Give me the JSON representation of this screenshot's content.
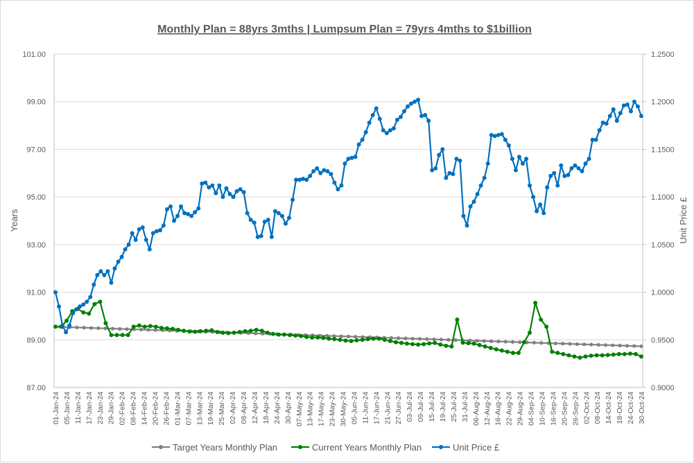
{
  "chart_data": {
    "type": "line",
    "title": "Monthly Plan = 88yrs 3mths | Lumpsum Plan = 79yrs 4mths to $1billion",
    "xlabel": "",
    "ylabel": "Years",
    "y2label": "Unit Price £",
    "ylim": [
      87,
      101
    ],
    "y2lim": [
      0.9,
      1.25
    ],
    "yticks": [
      "87.00",
      "89.00",
      "91.00",
      "93.00",
      "95.00",
      "97.00",
      "99.00",
      "101.00"
    ],
    "y2ticks": [
      "0.9000",
      "0.9500",
      "1.0000",
      "1.0500",
      "1.1000",
      "1.1500",
      "1.2000",
      "1.2500"
    ],
    "grid": true,
    "legend_position": "bottom",
    "x_tick_labels": [
      "01-Jan-24",
      "05-Jan-24",
      "11-Jan-24",
      "17-Jan-24",
      "23-Jan-24",
      "29-Jan-24",
      "02-Feb-24",
      "08-Feb-24",
      "14-Feb-24",
      "20-Feb-24",
      "26-Feb-24",
      "01-Mar-24",
      "07-Mar-24",
      "13-Mar-24",
      "19-Mar-24",
      "25-Mar-24",
      "02-Apr-24",
      "08-Apr-24",
      "12-Apr-24",
      "18-Apr-24",
      "24-Apr-24",
      "30-Apr-24",
      "07-May-24",
      "13-May-24",
      "17-May-24",
      "23-May-24",
      "30-May-24",
      "05-Jun-24",
      "11-Jun-24",
      "17-Jun-24",
      "21-Jun-24",
      "27-Jun-24",
      "03-Jul-24",
      "09-Jul-24",
      "15-Jul-24",
      "19-Jul-24",
      "25-Jul-24",
      "31-Jul-24",
      "06-Aug-24",
      "12-Aug-24",
      "16-Aug-24",
      "22-Aug-24",
      "29-Aug-24",
      "04-Sep-24",
      "10-Sep-24",
      "16-Sep-24",
      "20-Sep-24",
      "26-Sep-24",
      "02-Oct-24",
      "08-Oct-24",
      "14-Oct-24",
      "18-Oct-24",
      "24-Oct-24",
      "30-Oct-24"
    ],
    "series": [
      {
        "name": "Target Years Monthly Plan",
        "axis": "left",
        "color": "#808080",
        "values": [
          89.55,
          89.54,
          89.53,
          89.52,
          89.51,
          89.5,
          89.49,
          89.48,
          89.47,
          89.46,
          89.45,
          89.44,
          89.43,
          89.42,
          89.41,
          89.4,
          89.39,
          89.38,
          89.37,
          89.36,
          89.35,
          89.34,
          89.33,
          89.32,
          89.31,
          89.3,
          89.29,
          89.28,
          89.27,
          89.26,
          89.25,
          89.24,
          89.23,
          89.22,
          89.21,
          89.2,
          89.19,
          89.18,
          89.17,
          89.16,
          89.15,
          89.14,
          89.13,
          89.12,
          89.11,
          89.1,
          89.09,
          89.08,
          89.07,
          89.06,
          89.05,
          89.04,
          89.03,
          89.02,
          89.01,
          89.0,
          88.99,
          88.98,
          88.97,
          88.96,
          88.95,
          88.94,
          88.93,
          88.92,
          88.91,
          88.9,
          88.89,
          88.88,
          88.87,
          88.86,
          88.85,
          88.84,
          88.83,
          88.82,
          88.81,
          88.8,
          88.79,
          88.78,
          88.77,
          88.76,
          88.75,
          88.74,
          88.73
        ]
      },
      {
        "name": "Current Years Monthly Plan",
        "axis": "left",
        "color": "#008000",
        "values": [
          89.55,
          89.55,
          89.8,
          90.2,
          90.3,
          90.15,
          90.1,
          90.5,
          90.6,
          89.7,
          89.2,
          89.2,
          89.2,
          89.2,
          89.55,
          89.6,
          89.55,
          89.58,
          89.55,
          89.5,
          89.48,
          89.46,
          89.42,
          89.38,
          89.35,
          89.34,
          89.36,
          89.38,
          89.4,
          89.33,
          89.3,
          89.28,
          89.3,
          89.33,
          89.36,
          89.38,
          89.42,
          89.38,
          89.3,
          89.25,
          89.22,
          89.22,
          89.2,
          89.18,
          89.16,
          89.12,
          89.1,
          89.1,
          89.08,
          89.05,
          89.03,
          89.0,
          88.97,
          88.95,
          88.98,
          89.0,
          89.03,
          89.05,
          89.05,
          89.0,
          88.95,
          88.9,
          88.87,
          88.84,
          88.82,
          88.8,
          88.82,
          88.85,
          88.87,
          88.8,
          88.75,
          88.72,
          89.85,
          88.88,
          88.86,
          88.84,
          88.78,
          88.72,
          88.66,
          88.6,
          88.55,
          88.5,
          88.45,
          88.45,
          88.9,
          89.3,
          90.55,
          89.85,
          89.55,
          88.5,
          88.45,
          88.4,
          88.35,
          88.3,
          88.25,
          88.3,
          88.33,
          88.35,
          88.35,
          88.36,
          88.38,
          88.4,
          88.4,
          88.42,
          88.4,
          88.3
        ]
      },
      {
        "name": "Unit Price £",
        "axis": "right",
        "color": "#0070c0",
        "values": [
          1.0,
          0.985,
          0.965,
          0.958,
          0.965,
          0.978,
          0.982,
          0.985,
          0.987,
          0.99,
          0.995,
          1.008,
          1.018,
          1.022,
          1.018,
          1.022,
          1.01,
          1.025,
          1.032,
          1.037,
          1.045,
          1.05,
          1.062,
          1.055,
          1.066,
          1.068,
          1.055,
          1.045,
          1.062,
          1.064,
          1.065,
          1.07,
          1.087,
          1.09,
          1.075,
          1.08,
          1.09,
          1.083,
          1.082,
          1.08,
          1.084,
          1.088,
          1.114,
          1.115,
          1.11,
          1.112,
          1.104,
          1.112,
          1.1,
          1.109,
          1.103,
          1.1,
          1.106,
          1.108,
          1.105,
          1.083,
          1.076,
          1.073,
          1.058,
          1.059,
          1.074,
          1.076,
          1.058,
          1.085,
          1.083,
          1.08,
          1.072,
          1.078,
          1.097,
          1.118,
          1.118,
          1.119,
          1.118,
          1.122,
          1.127,
          1.13,
          1.125,
          1.128,
          1.127,
          1.124,
          1.115,
          1.108,
          1.112,
          1.135,
          1.14,
          1.141,
          1.142,
          1.155,
          1.16,
          1.168,
          1.178,
          1.186,
          1.193,
          1.182,
          1.17,
          1.167,
          1.17,
          1.172,
          1.181,
          1.184,
          1.19,
          1.195,
          1.198,
          1.2,
          1.202,
          1.185,
          1.186,
          1.18,
          1.128,
          1.13,
          1.144,
          1.15,
          1.12,
          1.125,
          1.124,
          1.14,
          1.138,
          1.08,
          1.07,
          1.09,
          1.095,
          1.103,
          1.112,
          1.12,
          1.135,
          1.165,
          1.164,
          1.165,
          1.166,
          1.16,
          1.154,
          1.14,
          1.128,
          1.142,
          1.135,
          1.14,
          1.112,
          1.1,
          1.085,
          1.092,
          1.083,
          1.11,
          1.122,
          1.125,
          1.112,
          1.133,
          1.122,
          1.123,
          1.13,
          1.133,
          1.13,
          1.127,
          1.135,
          1.14,
          1.16,
          1.16,
          1.17,
          1.178,
          1.177,
          1.185,
          1.192,
          1.18,
          1.188,
          1.196,
          1.197,
          1.19,
          1.2,
          1.195,
          1.185
        ]
      }
    ]
  },
  "legend": {
    "items": [
      {
        "label": "Target Years Monthly Plan",
        "color": "#808080"
      },
      {
        "label": "Current Years Monthly Plan",
        "color": "#008000"
      },
      {
        "label": "Unit Price £",
        "color": "#0070c0"
      }
    ]
  }
}
